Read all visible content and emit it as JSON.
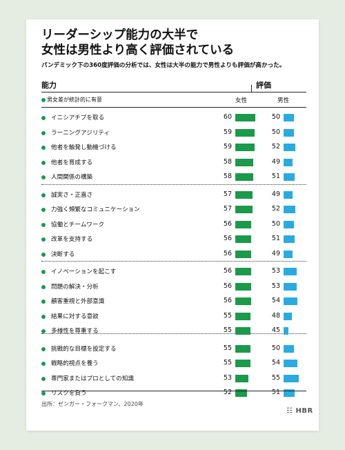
{
  "title_line1": "リーダーシップ能力の大半で",
  "title_line2": "女性は男性より高く評価されている",
  "subtitle": "パンデミック下の360度評価の分析では、女性は大半の能力で男性よりも評価が高かった。",
  "header": {
    "ability": "能力",
    "rating": "評価",
    "legend_note": "男女差が統計的に有意",
    "female": "女性",
    "male": "男性"
  },
  "source": "出所：ゼンガー・フォークマン、2020年",
  "logo": "HBR",
  "colors": {
    "female": "#1a9a4a",
    "male": "#29abe2",
    "significant_dot": "#1a9a4a"
  },
  "chart_data": {
    "type": "bar",
    "title": "リーダーシップ能力の大半で女性は男性より高く評価されている",
    "subtitle": "パンデミック下の360度評価の分析では、女性は大半の能力で男性よりも評価が高かった。",
    "xlabel": "能力",
    "ylabel": "評価",
    "orientation": "horizontal",
    "categories": [
      "イニシアチブを取る",
      "ラーニングアジリティ",
      "他者を触発し動機づける",
      "他者を育成する",
      "人間関係の構築",
      "誠実さ・正直さ",
      "力強く頻繁なコミュニケーション",
      "協働とチームワーク",
      "改革を支持する",
      "決断する",
      "イノベーションを起こす",
      "問題の解決・分析",
      "顧客重視と外部意識",
      "結果に対する意欲",
      "多様性を尊重する",
      "挑戦的な目標を設定する",
      "戦略的視点を養う",
      "専門家またはプロとしての知識",
      "リスクを負う"
    ],
    "series": [
      {
        "name": "女性",
        "values": [
          60,
          59,
          59,
          58,
          58,
          57,
          57,
          56,
          56,
          56,
          56,
          56,
          56,
          55,
          55,
          55,
          55,
          53,
          52
        ]
      },
      {
        "name": "男性",
        "values": [
          50,
          50,
          52,
          49,
          51,
          49,
          52,
          50,
          51,
          49,
          53,
          53,
          54,
          48,
          45,
          50,
          54,
          55,
          51
        ]
      }
    ],
    "significant": [
      true,
      true,
      true,
      true,
      true,
      true,
      true,
      true,
      true,
      true,
      true,
      true,
      true,
      true,
      true,
      true,
      true,
      true,
      true
    ],
    "groups": [
      5,
      5,
      5,
      4
    ],
    "legend": "男女差が統計的に有意"
  }
}
